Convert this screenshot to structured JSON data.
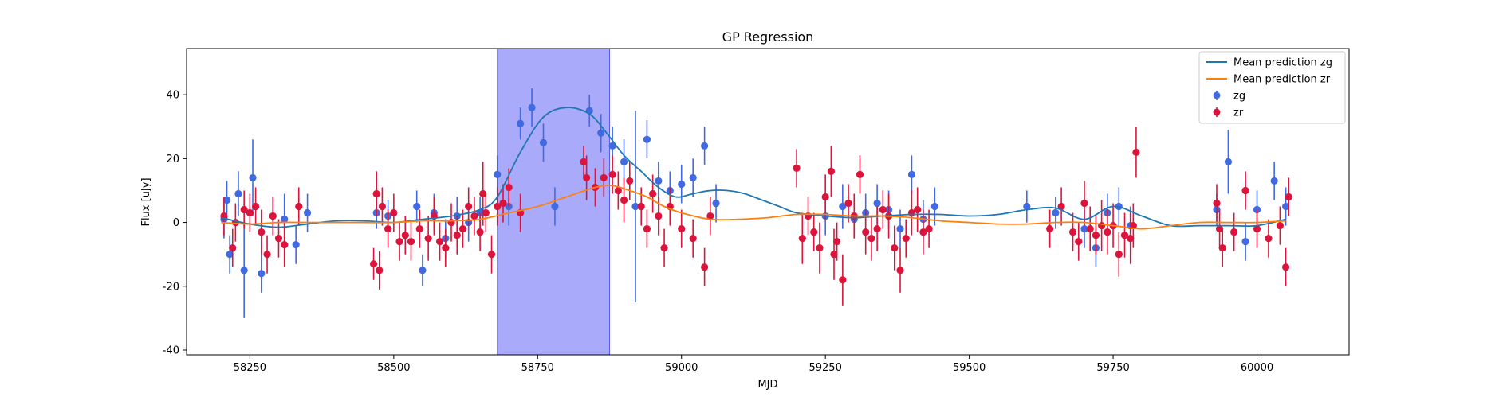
{
  "chart_data": {
    "type": "scatter",
    "title": "GP Regression",
    "xlabel": "MJD",
    "ylabel": "Flux [uJy]",
    "xlim": [
      58140,
      60160
    ],
    "ylim": [
      -41.5,
      54.5
    ],
    "xticks": [
      58250,
      58500,
      58750,
      59000,
      59250,
      59500,
      59750,
      60000
    ],
    "yticks": [
      -40,
      -20,
      0,
      20,
      40
    ],
    "grid": false,
    "legend_position": "top-right",
    "legend": [
      {
        "label": "Mean prediction zg",
        "kind": "line",
        "color": "#1f77b4"
      },
      {
        "label": "Mean prediction zr",
        "kind": "line",
        "color": "#ff7f0e"
      },
      {
        "label": "zg",
        "kind": "errorbar",
        "color": "#4169e1"
      },
      {
        "label": "zr",
        "kind": "errorbar",
        "color": "#dc143c"
      }
    ],
    "highlight_span": {
      "x0": 58680,
      "x1": 58875,
      "color": "#6a6cf6"
    },
    "mean_prediction": [
      {
        "name": "Mean prediction zg",
        "color": "#1f77b4",
        "x": [
          58200,
          58250,
          58300,
          58350,
          58400,
          58450,
          58500,
          58550,
          58600,
          58650,
          58680,
          58720,
          58760,
          58800,
          58840,
          58870,
          58900,
          58930,
          58960,
          58990,
          59020,
          59050,
          59080,
          59110,
          59140,
          59170,
          59200,
          59250,
          59300,
          59350,
          59400,
          59450,
          59500,
          59550,
          59600,
          59650,
          59700,
          59750,
          59800,
          59850,
          59900,
          59950,
          60000,
          60050
        ],
        "y": [
          1.5,
          -0.5,
          -1.5,
          -0.5,
          0.5,
          0.5,
          0,
          1,
          2,
          4,
          8,
          22,
          33,
          36,
          34,
          28,
          21,
          16,
          11,
          8,
          9,
          10,
          10,
          9,
          7,
          5,
          3,
          2,
          1.5,
          2,
          2.5,
          2.5,
          2,
          2.5,
          4,
          4.5,
          1,
          5,
          2,
          -1,
          -1,
          -1,
          -1,
          1
        ]
      },
      {
        "name": "Mean prediction zr",
        "color": "#ff7f0e",
        "x": [
          58200,
          58250,
          58300,
          58350,
          58400,
          58450,
          58500,
          58550,
          58600,
          58650,
          58700,
          58750,
          58800,
          58850,
          58880,
          58910,
          58940,
          58970,
          59000,
          59050,
          59100,
          59150,
          59200,
          59250,
          59300,
          59350,
          59400,
          59450,
          59500,
          59550,
          59600,
          59650,
          59700,
          59750,
          59800,
          59850,
          59900,
          59950,
          60000,
          60050
        ],
        "y": [
          0,
          -0.5,
          0,
          0,
          0,
          0,
          0,
          0.5,
          0.5,
          1,
          3,
          5,
          8,
          11,
          11.5,
          10,
          8,
          5,
          3,
          1,
          1,
          1.5,
          2.5,
          2.5,
          2,
          2,
          1.5,
          0.5,
          0,
          -0.5,
          -0.5,
          0,
          0,
          -1,
          -2,
          -1,
          0,
          0,
          0,
          0.5
        ]
      }
    ],
    "series": [
      {
        "name": "zg",
        "color": "#4169e1",
        "x": [
          58205,
          58210,
          58215,
          58230,
          58240,
          58255,
          58270,
          58290,
          58310,
          58330,
          58350,
          58470,
          58490,
          58540,
          58550,
          58570,
          58590,
          58610,
          58630,
          58650,
          58680,
          58700,
          58720,
          58740,
          58760,
          58780,
          58840,
          58860,
          58880,
          58900,
          58920,
          58940,
          58960,
          58980,
          59000,
          59020,
          59040,
          59060,
          59250,
          59280,
          59300,
          59320,
          59340,
          59360,
          59380,
          59400,
          59420,
          59440,
          59600,
          59650,
          59700,
          59720,
          59740,
          59760,
          59780,
          59930,
          59950,
          59980,
          60000,
          60030,
          60050
        ],
        "y": [
          1,
          7,
          -10,
          9,
          -15,
          14,
          -16,
          2,
          1,
          -7,
          3,
          3,
          2,
          5,
          -15,
          3,
          -5,
          2,
          0,
          3,
          15,
          5,
          31,
          36,
          25,
          5,
          35,
          28,
          24,
          19,
          5,
          26,
          13,
          10,
          12,
          14,
          24,
          6,
          2,
          5,
          1,
          3,
          6,
          4,
          -2,
          15,
          1,
          5,
          5,
          3,
          -2,
          -8,
          3,
          5,
          -1,
          4,
          19,
          -6,
          4,
          13,
          5
        ],
        "err": [
          6,
          6,
          6,
          7,
          15,
          12,
          6,
          6,
          8,
          6,
          6,
          5,
          5,
          5,
          5,
          6,
          6,
          6,
          6,
          5,
          6,
          6,
          5,
          6,
          6,
          6,
          5,
          6,
          6,
          7,
          30,
          6,
          6,
          6,
          6,
          6,
          6,
          6,
          6,
          7,
          6,
          6,
          6,
          6,
          6,
          6,
          6,
          6,
          5,
          5,
          6,
          6,
          6,
          6,
          6,
          5,
          10,
          6,
          6,
          6,
          6
        ],
        "marker": "circle"
      },
      {
        "name": "zr",
        "color": "#dc143c",
        "x": [
          58205,
          58220,
          58225,
          58240,
          58250,
          58260,
          58270,
          58280,
          58290,
          58300,
          58310,
          58335,
          58465,
          58470,
          58475,
          58480,
          58490,
          58500,
          58510,
          58520,
          58530,
          58545,
          58560,
          58570,
          58580,
          58590,
          58600,
          58610,
          58620,
          58630,
          58640,
          58650,
          58655,
          58660,
          58670,
          58680,
          58690,
          58700,
          58720,
          58830,
          58835,
          58850,
          58865,
          58880,
          58890,
          58900,
          58910,
          58930,
          58940,
          58950,
          58960,
          58970,
          58980,
          59000,
          59020,
          59040,
          59050,
          59200,
          59210,
          59220,
          59230,
          59240,
          59250,
          59260,
          59265,
          59270,
          59280,
          59290,
          59300,
          59310,
          59320,
          59330,
          59340,
          59350,
          59360,
          59370,
          59380,
          59390,
          59400,
          59410,
          59420,
          59430,
          59640,
          59660,
          59680,
          59690,
          59700,
          59710,
          59720,
          59730,
          59740,
          59750,
          59760,
          59770,
          59780,
          59785,
          59790,
          59930,
          59935,
          59940,
          59960,
          59980,
          60000,
          60020,
          60040,
          60050,
          60055
        ],
        "y": [
          2,
          -8,
          0,
          4,
          3,
          5,
          -3,
          -10,
          2,
          -5,
          -7,
          5,
          -13,
          9,
          -15,
          5,
          -2,
          3,
          -6,
          -4,
          -6,
          -2,
          -5,
          2,
          -6,
          -8,
          0,
          -4,
          -2,
          5,
          2,
          -3,
          9,
          3,
          -10,
          5,
          6,
          11,
          3,
          19,
          14,
          11,
          14,
          15,
          10,
          7,
          13,
          5,
          -2,
          9,
          2,
          -8,
          5,
          -2,
          -5,
          -14,
          2,
          17,
          -5,
          2,
          -3,
          -8,
          8,
          16,
          -10,
          -6,
          -18,
          6,
          2,
          15,
          -3,
          -5,
          -2,
          4,
          2,
          -8,
          -15,
          -5,
          3,
          4,
          -3,
          -2,
          -2,
          5,
          -3,
          -6,
          6,
          -2,
          -4,
          -1,
          -3,
          -1,
          -10,
          -4,
          -5,
          -1,
          22,
          6,
          -2,
          -8,
          -3,
          10,
          -2,
          -5,
          -1,
          -14,
          8
        ],
        "err": [
          6,
          6,
          6,
          6,
          6,
          6,
          7,
          6,
          6,
          6,
          7,
          6,
          5,
          7,
          6,
          6,
          6,
          6,
          6,
          6,
          6,
          6,
          7,
          6,
          6,
          6,
          6,
          6,
          6,
          6,
          6,
          6,
          10,
          6,
          6,
          6,
          6,
          6,
          6,
          5,
          7,
          6,
          6,
          6,
          6,
          7,
          6,
          6,
          6,
          6,
          6,
          6,
          6,
          6,
          6,
          6,
          6,
          6,
          8,
          6,
          6,
          8,
          7,
          8,
          8,
          6,
          8,
          6,
          7,
          6,
          7,
          7,
          7,
          6,
          7,
          7,
          7,
          6,
          7,
          7,
          7,
          6,
          6,
          6,
          6,
          6,
          7,
          7,
          6,
          8,
          7,
          7,
          7,
          7,
          8,
          7,
          8,
          6,
          6,
          6,
          6,
          6,
          6,
          6,
          6,
          6,
          6
        ],
        "marker": "circle"
      }
    ]
  }
}
